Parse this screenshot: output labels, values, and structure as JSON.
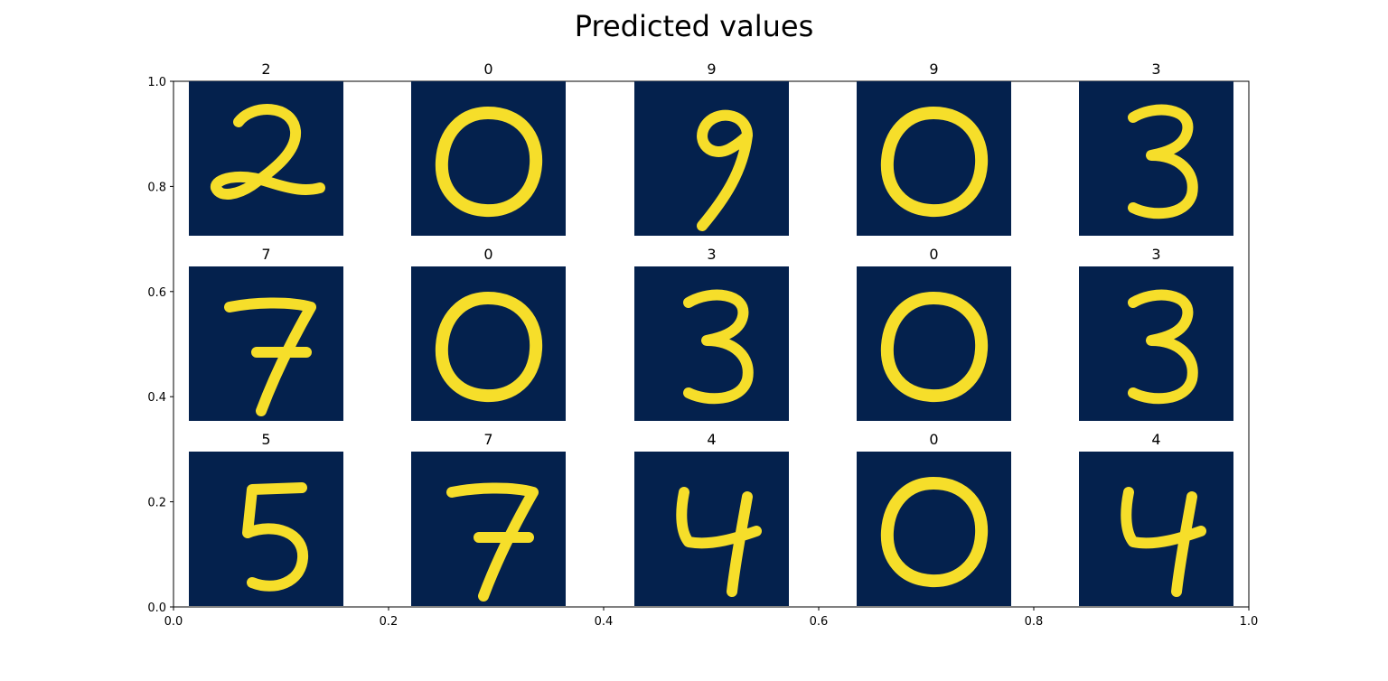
{
  "figure": {
    "title": "Predicted values"
  },
  "chart_data": {
    "type": "image-grid",
    "title": "Predicted values",
    "xlim": [
      0,
      1
    ],
    "ylim": [
      0,
      1
    ],
    "x_ticks": [
      "0.0",
      "0.2",
      "0.4",
      "0.6",
      "0.8",
      "1.0"
    ],
    "y_ticks": [
      "0.0",
      "0.2",
      "0.4",
      "0.6",
      "0.8",
      "1.0"
    ],
    "grid": false,
    "colors": {
      "background": "#04214d",
      "digit": "#f6de2a"
    },
    "rows": 3,
    "cols": 5,
    "panels": [
      {
        "label": "2",
        "digit": "2"
      },
      {
        "label": "0",
        "digit": "0"
      },
      {
        "label": "9",
        "digit": "9"
      },
      {
        "label": "9",
        "digit": "0"
      },
      {
        "label": "3",
        "digit": "3"
      },
      {
        "label": "7",
        "digit": "7"
      },
      {
        "label": "0",
        "digit": "0"
      },
      {
        "label": "3",
        "digit": "3"
      },
      {
        "label": "0",
        "digit": "0"
      },
      {
        "label": "3",
        "digit": "3"
      },
      {
        "label": "5",
        "digit": "5"
      },
      {
        "label": "7",
        "digit": "7"
      },
      {
        "label": "4",
        "digit": "4"
      },
      {
        "label": "0",
        "digit": "0"
      },
      {
        "label": "4",
        "digit": "4"
      }
    ]
  }
}
